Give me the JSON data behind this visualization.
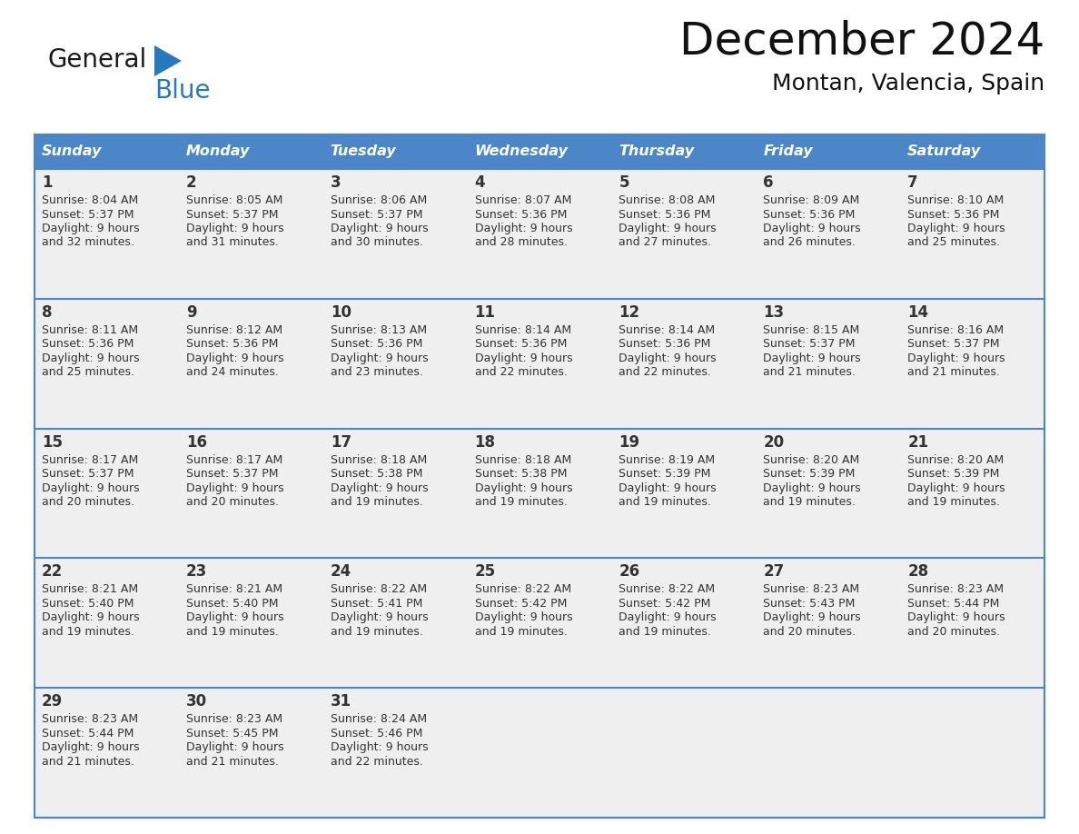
{
  "title": "December 2024",
  "subtitle": "Montan, Valencia, Spain",
  "header_color": "#4a86c8",
  "header_text_color": "#ffffff",
  "cell_bg_color": "#efefef",
  "border_color": "#4a86c8",
  "text_color": "#333333",
  "days_of_week": [
    "Sunday",
    "Monday",
    "Tuesday",
    "Wednesday",
    "Thursday",
    "Friday",
    "Saturday"
  ],
  "calendar_data": [
    [
      {
        "day": 1,
        "sunrise": "8:04 AM",
        "sunset": "5:37 PM",
        "daylight_line1": "Daylight: 9 hours",
        "daylight_line2": "and 32 minutes."
      },
      {
        "day": 2,
        "sunrise": "8:05 AM",
        "sunset": "5:37 PM",
        "daylight_line1": "Daylight: 9 hours",
        "daylight_line2": "and 31 minutes."
      },
      {
        "day": 3,
        "sunrise": "8:06 AM",
        "sunset": "5:37 PM",
        "daylight_line1": "Daylight: 9 hours",
        "daylight_line2": "and 30 minutes."
      },
      {
        "day": 4,
        "sunrise": "8:07 AM",
        "sunset": "5:36 PM",
        "daylight_line1": "Daylight: 9 hours",
        "daylight_line2": "and 28 minutes."
      },
      {
        "day": 5,
        "sunrise": "8:08 AM",
        "sunset": "5:36 PM",
        "daylight_line1": "Daylight: 9 hours",
        "daylight_line2": "and 27 minutes."
      },
      {
        "day": 6,
        "sunrise": "8:09 AM",
        "sunset": "5:36 PM",
        "daylight_line1": "Daylight: 9 hours",
        "daylight_line2": "and 26 minutes."
      },
      {
        "day": 7,
        "sunrise": "8:10 AM",
        "sunset": "5:36 PM",
        "daylight_line1": "Daylight: 9 hours",
        "daylight_line2": "and 25 minutes."
      }
    ],
    [
      {
        "day": 8,
        "sunrise": "8:11 AM",
        "sunset": "5:36 PM",
        "daylight_line1": "Daylight: 9 hours",
        "daylight_line2": "and 25 minutes."
      },
      {
        "day": 9,
        "sunrise": "8:12 AM",
        "sunset": "5:36 PM",
        "daylight_line1": "Daylight: 9 hours",
        "daylight_line2": "and 24 minutes."
      },
      {
        "day": 10,
        "sunrise": "8:13 AM",
        "sunset": "5:36 PM",
        "daylight_line1": "Daylight: 9 hours",
        "daylight_line2": "and 23 minutes."
      },
      {
        "day": 11,
        "sunrise": "8:14 AM",
        "sunset": "5:36 PM",
        "daylight_line1": "Daylight: 9 hours",
        "daylight_line2": "and 22 minutes."
      },
      {
        "day": 12,
        "sunrise": "8:14 AM",
        "sunset": "5:36 PM",
        "daylight_line1": "Daylight: 9 hours",
        "daylight_line2": "and 22 minutes."
      },
      {
        "day": 13,
        "sunrise": "8:15 AM",
        "sunset": "5:37 PM",
        "daylight_line1": "Daylight: 9 hours",
        "daylight_line2": "and 21 minutes."
      },
      {
        "day": 14,
        "sunrise": "8:16 AM",
        "sunset": "5:37 PM",
        "daylight_line1": "Daylight: 9 hours",
        "daylight_line2": "and 21 minutes."
      }
    ],
    [
      {
        "day": 15,
        "sunrise": "8:17 AM",
        "sunset": "5:37 PM",
        "daylight_line1": "Daylight: 9 hours",
        "daylight_line2": "and 20 minutes."
      },
      {
        "day": 16,
        "sunrise": "8:17 AM",
        "sunset": "5:37 PM",
        "daylight_line1": "Daylight: 9 hours",
        "daylight_line2": "and 20 minutes."
      },
      {
        "day": 17,
        "sunrise": "8:18 AM",
        "sunset": "5:38 PM",
        "daylight_line1": "Daylight: 9 hours",
        "daylight_line2": "and 19 minutes."
      },
      {
        "day": 18,
        "sunrise": "8:18 AM",
        "sunset": "5:38 PM",
        "daylight_line1": "Daylight: 9 hours",
        "daylight_line2": "and 19 minutes."
      },
      {
        "day": 19,
        "sunrise": "8:19 AM",
        "sunset": "5:39 PM",
        "daylight_line1": "Daylight: 9 hours",
        "daylight_line2": "and 19 minutes."
      },
      {
        "day": 20,
        "sunrise": "8:20 AM",
        "sunset": "5:39 PM",
        "daylight_line1": "Daylight: 9 hours",
        "daylight_line2": "and 19 minutes."
      },
      {
        "day": 21,
        "sunrise": "8:20 AM",
        "sunset": "5:39 PM",
        "daylight_line1": "Daylight: 9 hours",
        "daylight_line2": "and 19 minutes."
      }
    ],
    [
      {
        "day": 22,
        "sunrise": "8:21 AM",
        "sunset": "5:40 PM",
        "daylight_line1": "Daylight: 9 hours",
        "daylight_line2": "and 19 minutes."
      },
      {
        "day": 23,
        "sunrise": "8:21 AM",
        "sunset": "5:40 PM",
        "daylight_line1": "Daylight: 9 hours",
        "daylight_line2": "and 19 minutes."
      },
      {
        "day": 24,
        "sunrise": "8:22 AM",
        "sunset": "5:41 PM",
        "daylight_line1": "Daylight: 9 hours",
        "daylight_line2": "and 19 minutes."
      },
      {
        "day": 25,
        "sunrise": "8:22 AM",
        "sunset": "5:42 PM",
        "daylight_line1": "Daylight: 9 hours",
        "daylight_line2": "and 19 minutes."
      },
      {
        "day": 26,
        "sunrise": "8:22 AM",
        "sunset": "5:42 PM",
        "daylight_line1": "Daylight: 9 hours",
        "daylight_line2": "and 19 minutes."
      },
      {
        "day": 27,
        "sunrise": "8:23 AM",
        "sunset": "5:43 PM",
        "daylight_line1": "Daylight: 9 hours",
        "daylight_line2": "and 20 minutes."
      },
      {
        "day": 28,
        "sunrise": "8:23 AM",
        "sunset": "5:44 PM",
        "daylight_line1": "Daylight: 9 hours",
        "daylight_line2": "and 20 minutes."
      }
    ],
    [
      {
        "day": 29,
        "sunrise": "8:23 AM",
        "sunset": "5:44 PM",
        "daylight_line1": "Daylight: 9 hours",
        "daylight_line2": "and 21 minutes."
      },
      {
        "day": 30,
        "sunrise": "8:23 AM",
        "sunset": "5:45 PM",
        "daylight_line1": "Daylight: 9 hours",
        "daylight_line2": "and 21 minutes."
      },
      {
        "day": 31,
        "sunrise": "8:24 AM",
        "sunset": "5:46 PM",
        "daylight_line1": "Daylight: 9 hours",
        "daylight_line2": "and 22 minutes."
      },
      null,
      null,
      null,
      null
    ]
  ],
  "logo_general_color": "#1a1a1a",
  "logo_blue_color": "#2878c0"
}
